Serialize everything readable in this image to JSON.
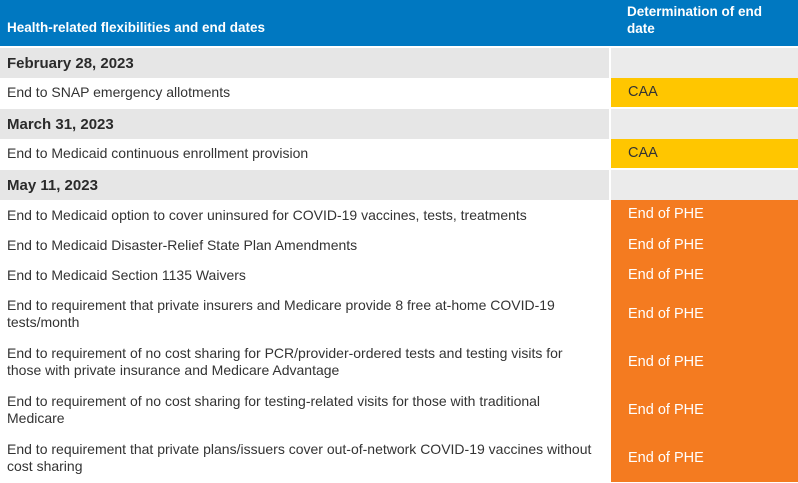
{
  "header": {
    "col1": "Health-related flexibilities and end dates",
    "col2": "Determination of end date"
  },
  "sections": [
    {
      "date": "February 28, 2023",
      "rows": [
        {
          "label": "End to SNAP emergency allotments",
          "determination": "CAA"
        }
      ]
    },
    {
      "date": "March 31, 2023",
      "rows": [
        {
          "label": "End to Medicaid continuous enrollment provision",
          "determination": "CAA"
        }
      ]
    },
    {
      "date": "May 11, 2023",
      "rows": [
        {
          "label": "End to Medicaid option to cover uninsured for COVID-19 vaccines, tests, treatments",
          "determination": "End of PHE"
        },
        {
          "label": "End to Medicaid Disaster-Relief State Plan Amendments",
          "determination": "End of PHE"
        },
        {
          "label": "End to Medicaid Section 1135 Waivers",
          "determination": "End of PHE"
        },
        {
          "label": "End to requirement that private insurers and Medicare provide 8 free at-home COVID-19 tests/month",
          "determination": "End of PHE"
        },
        {
          "label": "End to requirement of no cost sharing for PCR/provider-ordered tests and testing visits for those with private insurance and Medicare Advantage",
          "determination": "End of PHE"
        },
        {
          "label": "End to requirement of no cost sharing for testing-related visits for those with traditional Medicare",
          "determination": "End of PHE"
        },
        {
          "label": "End to requirement that private plans/issuers cover out-of-network COVID-19 vaccines without cost sharing",
          "determination": "End of PHE"
        }
      ]
    }
  ],
  "colors": {
    "header_blue": "#0078c1",
    "caa_yellow": "#ffc600",
    "phe_orange": "#f47b20",
    "section_gray": "#e6e6e6"
  }
}
